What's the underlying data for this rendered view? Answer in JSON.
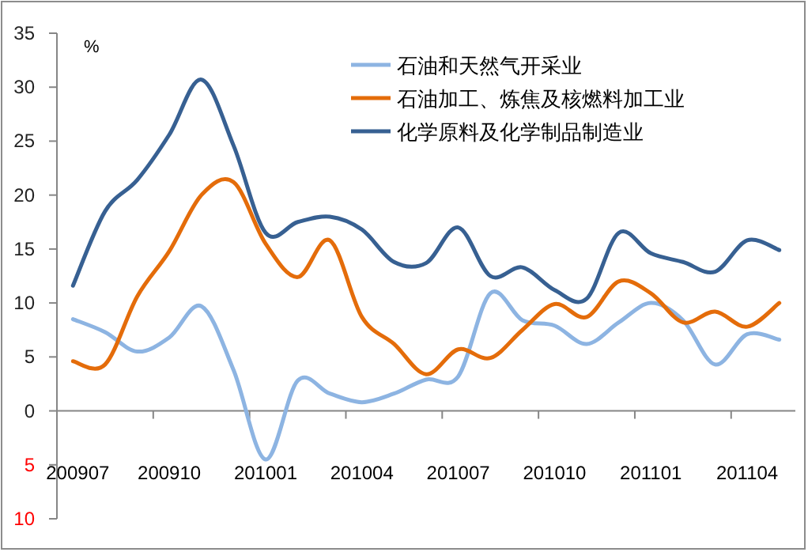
{
  "chart_data": {
    "type": "line",
    "ylabel": "%",
    "categories": [
      "200907",
      null,
      null,
      "200910",
      null,
      null,
      "201001",
      null,
      null,
      "201004",
      null,
      null,
      "201007",
      null,
      null,
      "201010",
      null,
      null,
      "201101",
      null,
      null,
      "201104",
      null
    ],
    "series": [
      {
        "name": "石油和天然气开采业",
        "color": "#8db4e2",
        "values": [
          8.5,
          7.3,
          5.5,
          6.8,
          9.7,
          3.8,
          -4.5,
          2.8,
          1.6,
          0.8,
          1.6,
          2.9,
          3.2,
          10.9,
          8.4,
          7.9,
          6.2,
          8.2,
          10.0,
          8.4,
          4.3,
          7.1,
          6.6
        ]
      },
      {
        "name": "石油加工、炼焦及核燃料加工业",
        "color": "#e46c0a",
        "values": [
          4.6,
          4.3,
          10.6,
          14.8,
          20.0,
          21.2,
          15.5,
          12.4,
          15.8,
          8.7,
          6.2,
          3.4,
          5.7,
          4.9,
          7.5,
          9.9,
          8.7,
          12.0,
          10.9,
          8.2,
          9.2,
          7.8,
          10.0
        ]
      },
      {
        "name": "化学原料及化学制品制造业",
        "color": "#376092",
        "values": [
          11.6,
          18.5,
          21.4,
          25.6,
          30.7,
          24.6,
          16.5,
          17.5,
          18.0,
          16.8,
          13.8,
          13.7,
          17.0,
          12.5,
          13.3,
          11.2,
          10.4,
          16.5,
          14.6,
          13.8,
          12.9,
          15.8,
          14.9
        ]
      }
    ],
    "ylim": [
      -10,
      35
    ],
    "yticks": [
      {
        "value": -10,
        "label": "10"
      },
      {
        "value": -5,
        "label": "5"
      },
      0,
      5,
      10,
      15,
      20,
      25,
      30,
      35
    ],
    "grid": false,
    "ref_lines": [
      {
        "axis": "y",
        "value": 0,
        "color": "#868686",
        "line_style": "solid"
      }
    ],
    "legend": "top right",
    "marker": "none",
    "line_style": "solid"
  }
}
